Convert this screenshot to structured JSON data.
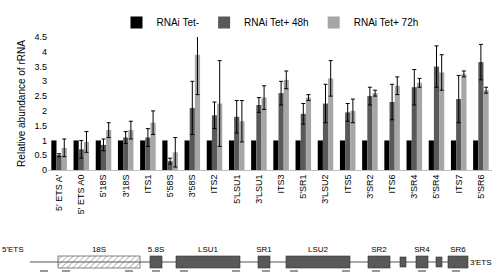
{
  "chart_data": {
    "type": "bar",
    "y_label": "Relative abundance of rRNA",
    "categories": [
      "5' ETS A'",
      "5' ETS A0",
      "5'18S",
      "3'18S",
      "ITS1",
      "5'58S",
      "3'58S",
      "ITS2",
      "5'LSU1",
      "3'LSU1",
      "ITS3",
      "5'SR1",
      "3'LSU2",
      "ITS5",
      "3'SR2",
      "ITS6",
      "3'SR4",
      "5'SR4",
      "ITS7",
      "5'SR6"
    ],
    "series": [
      {
        "name": "RNAi Tet-",
        "color": "#000000",
        "values": [
          1,
          1,
          1,
          1,
          1,
          1,
          1,
          1,
          1,
          1,
          1,
          1,
          1,
          1,
          1,
          1,
          1,
          1,
          1,
          1
        ]
      },
      {
        "name": "RNAi Tet+ 48h",
        "color": "#595959",
        "values": [
          0.5,
          0.7,
          0.85,
          1.1,
          1.1,
          0.3,
          2.1,
          1.85,
          1.8,
          2.2,
          2.6,
          1.9,
          2.25,
          1.95,
          2.5,
          2.3,
          2.8,
          3.5,
          2.4,
          3.65
        ],
        "errors": [
          0.05,
          0.3,
          0.2,
          0.2,
          0.3,
          0.1,
          0.9,
          0.45,
          0.55,
          0.25,
          0.4,
          0.35,
          0.65,
          0.3,
          0.3,
          0.6,
          0.6,
          0.7,
          0.8,
          0.6
        ]
      },
      {
        "name": "RNAi Tet+ 72h",
        "color": "#a6a6a6",
        "values": [
          0.75,
          0.95,
          1.35,
          1.35,
          1.6,
          0.6,
          3.9,
          2.25,
          1.65,
          2.45,
          3.05,
          2.45,
          3.1,
          2.0,
          2.6,
          2.85,
          2.95,
          3.3,
          3.25,
          2.7
        ],
        "errors": [
          0.3,
          0.35,
          0.25,
          0.3,
          0.4,
          0.5,
          1.35,
          1.45,
          0.7,
          0.4,
          0.3,
          0.1,
          0.6,
          0.4,
          0.1,
          0.3,
          0.15,
          0.6,
          0.1,
          0.1
        ]
      }
    ],
    "ylim": [
      0,
      4.5
    ],
    "yticks": [
      0,
      0.5,
      1,
      1.5,
      2,
      2.5,
      3,
      3.5,
      4,
      4.5
    ],
    "grid": false,
    "legend": "top"
  },
  "diagram": {
    "labels": [
      "5'ETS",
      "18S",
      "5.8S",
      "LSU1",
      "SR1",
      "LSU2",
      "SR2",
      "SR4",
      "SR6",
      "3'ETS"
    ]
  }
}
